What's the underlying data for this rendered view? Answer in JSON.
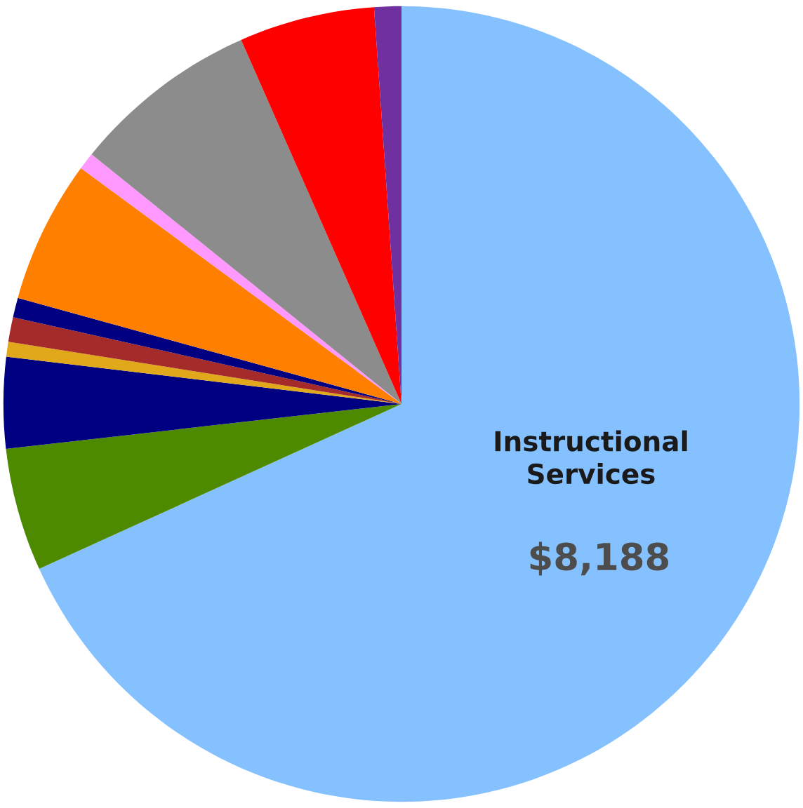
{
  "chart_data": {
    "type": "pie",
    "categories": [
      "Instructional Services",
      null,
      null,
      null,
      null,
      null,
      null,
      null,
      null,
      null,
      null
    ],
    "values": [
      68.2,
      5.0,
      3.7,
      0.6,
      1.0,
      0.8,
      5.8,
      0.7,
      7.6,
      5.5,
      1.1
    ],
    "colors": [
      "#85c1ff",
      "#4e8a00",
      "#000080",
      "#e0a81a",
      "#a52a2a",
      "#000080",
      "#ff8000",
      "#ff99ff",
      "#8c8c8c",
      "#ff0000",
      "#7030a0"
    ],
    "annotations": [
      "$8,188"
    ]
  }
}
